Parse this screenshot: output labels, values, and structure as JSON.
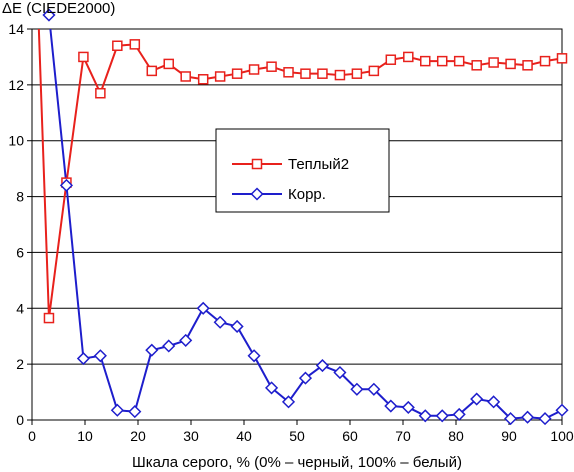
{
  "chart_data": {
    "type": "line",
    "title": "",
    "ylabel": "ΔE (CIEDE2000)",
    "xlabel": "Шкала серого, % (0% – черный, 100% – белый)",
    "xlim": [
      0,
      100
    ],
    "ylim": [
      0,
      14
    ],
    "x_ticks": [
      0,
      10,
      20,
      30,
      40,
      50,
      60,
      70,
      80,
      90,
      100
    ],
    "y_ticks": [
      0,
      2,
      4,
      6,
      8,
      10,
      12,
      14
    ],
    "grid": "horizontal",
    "legend_position": "center-right",
    "x": [
      3.2,
      6.5,
      9.7,
      12.9,
      16.1,
      19.4,
      22.6,
      25.8,
      29.0,
      32.3,
      35.5,
      38.7,
      41.9,
      45.2,
      48.4,
      51.6,
      54.8,
      58.1,
      61.3,
      64.5,
      67.7,
      71.0,
      74.2,
      77.4,
      80.6,
      83.9,
      87.1,
      90.3,
      93.5,
      96.8,
      100
    ],
    "series": [
      {
        "name": "Теплый2",
        "color": "#e8211c",
        "marker": "square",
        "start_value": 14.5,
        "values": [
          3.65,
          8.5,
          13.0,
          11.7,
          13.4,
          13.45,
          12.5,
          12.75,
          12.3,
          12.2,
          12.3,
          12.4,
          12.55,
          12.65,
          12.45,
          12.4,
          12.4,
          12.35,
          12.4,
          12.5,
          12.9,
          13.0,
          12.85,
          12.85,
          12.85,
          12.7,
          12.8,
          12.75,
          12.7,
          12.85,
          12.95
        ]
      },
      {
        "name": "Корр.",
        "color": "#1e1ecc",
        "marker": "diamond",
        "start_value": 15.5,
        "values": [
          14.5,
          8.4,
          2.2,
          2.3,
          0.35,
          0.3,
          2.5,
          2.65,
          2.85,
          4.0,
          3.5,
          3.35,
          2.3,
          1.15,
          0.65,
          1.5,
          1.95,
          1.7,
          1.1,
          1.1,
          0.5,
          0.45,
          0.15,
          0.15,
          0.2,
          0.75,
          0.65,
          0.05,
          0.1,
          0.05,
          0.35
        ]
      }
    ]
  }
}
